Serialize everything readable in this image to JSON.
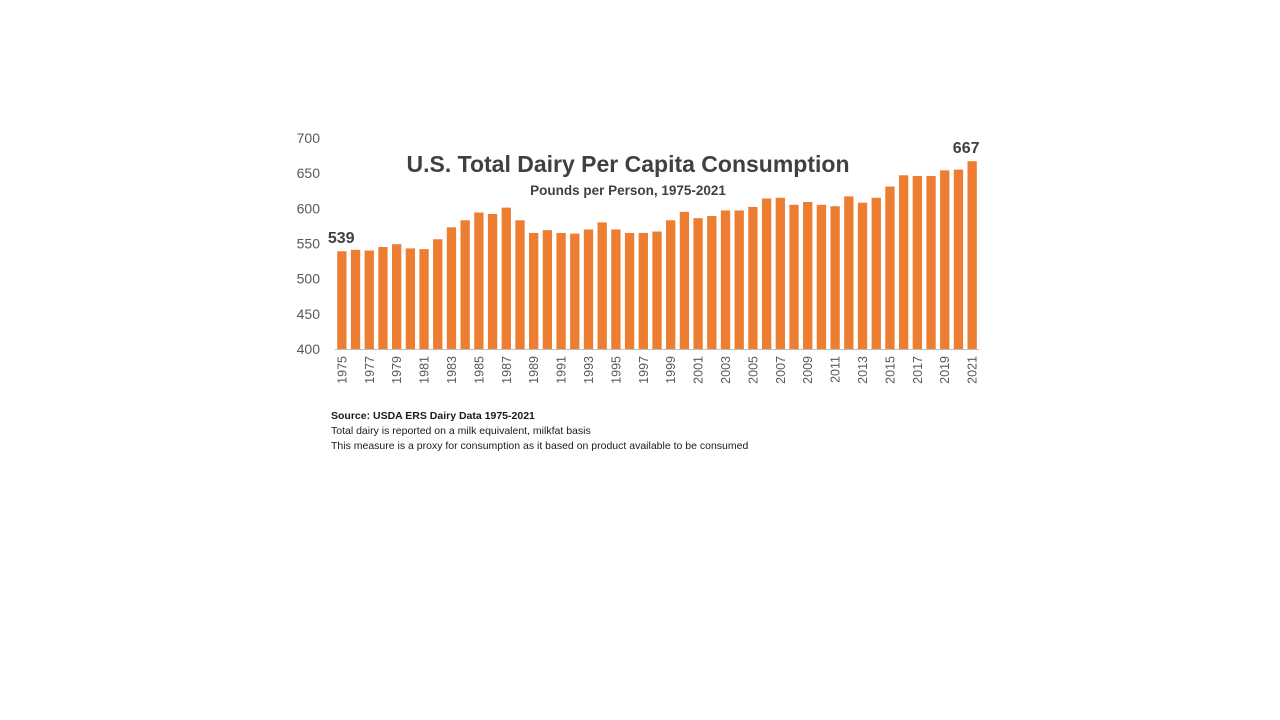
{
  "chart_data": {
    "type": "bar",
    "title": "U.S. Total Dairy Per Capita Consumption",
    "subtitle": "Pounds per Person, 1975-2021",
    "xlabel": "",
    "ylabel": "",
    "ylim": [
      400,
      700
    ],
    "yticks": [
      400,
      450,
      500,
      550,
      600,
      650,
      700
    ],
    "grid": false,
    "legend": "none",
    "bar_color": "#ED7D31",
    "categories": [
      "1975",
      "1976",
      "1977",
      "1978",
      "1979",
      "1980",
      "1981",
      "1982",
      "1983",
      "1984",
      "1985",
      "1986",
      "1987",
      "1988",
      "1989",
      "1990",
      "1991",
      "1992",
      "1993",
      "1994",
      "1995",
      "1996",
      "1997",
      "1998",
      "1999",
      "2000",
      "2001",
      "2002",
      "2003",
      "2004",
      "2005",
      "2006",
      "2007",
      "2008",
      "2009",
      "2010",
      "2011",
      "2012",
      "2013",
      "2014",
      "2015",
      "2016",
      "2017",
      "2018",
      "2019",
      "2020",
      "2021"
    ],
    "tick_labels": [
      "1975",
      "",
      "1977",
      "",
      "1979",
      "",
      "1981",
      "",
      "1983",
      "",
      "1985",
      "",
      "1987",
      "",
      "1989",
      "",
      "1991",
      "",
      "1993",
      "",
      "1995",
      "",
      "1997",
      "",
      "1999",
      "",
      "2001",
      "",
      "2003",
      "",
      "2005",
      "",
      "2007",
      "",
      "2009",
      "",
      "2011",
      "",
      "2013",
      "",
      "2015",
      "",
      "2017",
      "",
      "2019",
      "",
      "2021"
    ],
    "values": [
      539,
      541,
      540,
      545,
      549,
      543,
      542,
      556,
      573,
      583,
      594,
      592,
      601,
      583,
      565,
      569,
      565,
      564,
      570,
      580,
      570,
      565,
      565,
      567,
      583,
      595,
      586,
      589,
      597,
      597,
      602,
      614,
      615,
      605,
      609,
      605,
      603,
      617,
      608,
      615,
      631,
      647,
      646,
      646,
      654,
      655,
      667
    ],
    "data_labels": [
      {
        "index": 0,
        "text": "539"
      },
      {
        "index": 46,
        "text": "667"
      }
    ]
  },
  "notes": {
    "source": "Source: USDA ERS  Dairy Data 1975-2021",
    "line1": "Total dairy is reported on a milk equivalent, milkfat basis",
    "line2": "This measure is a proxy for consumption as it based on product available to be consumed"
  }
}
